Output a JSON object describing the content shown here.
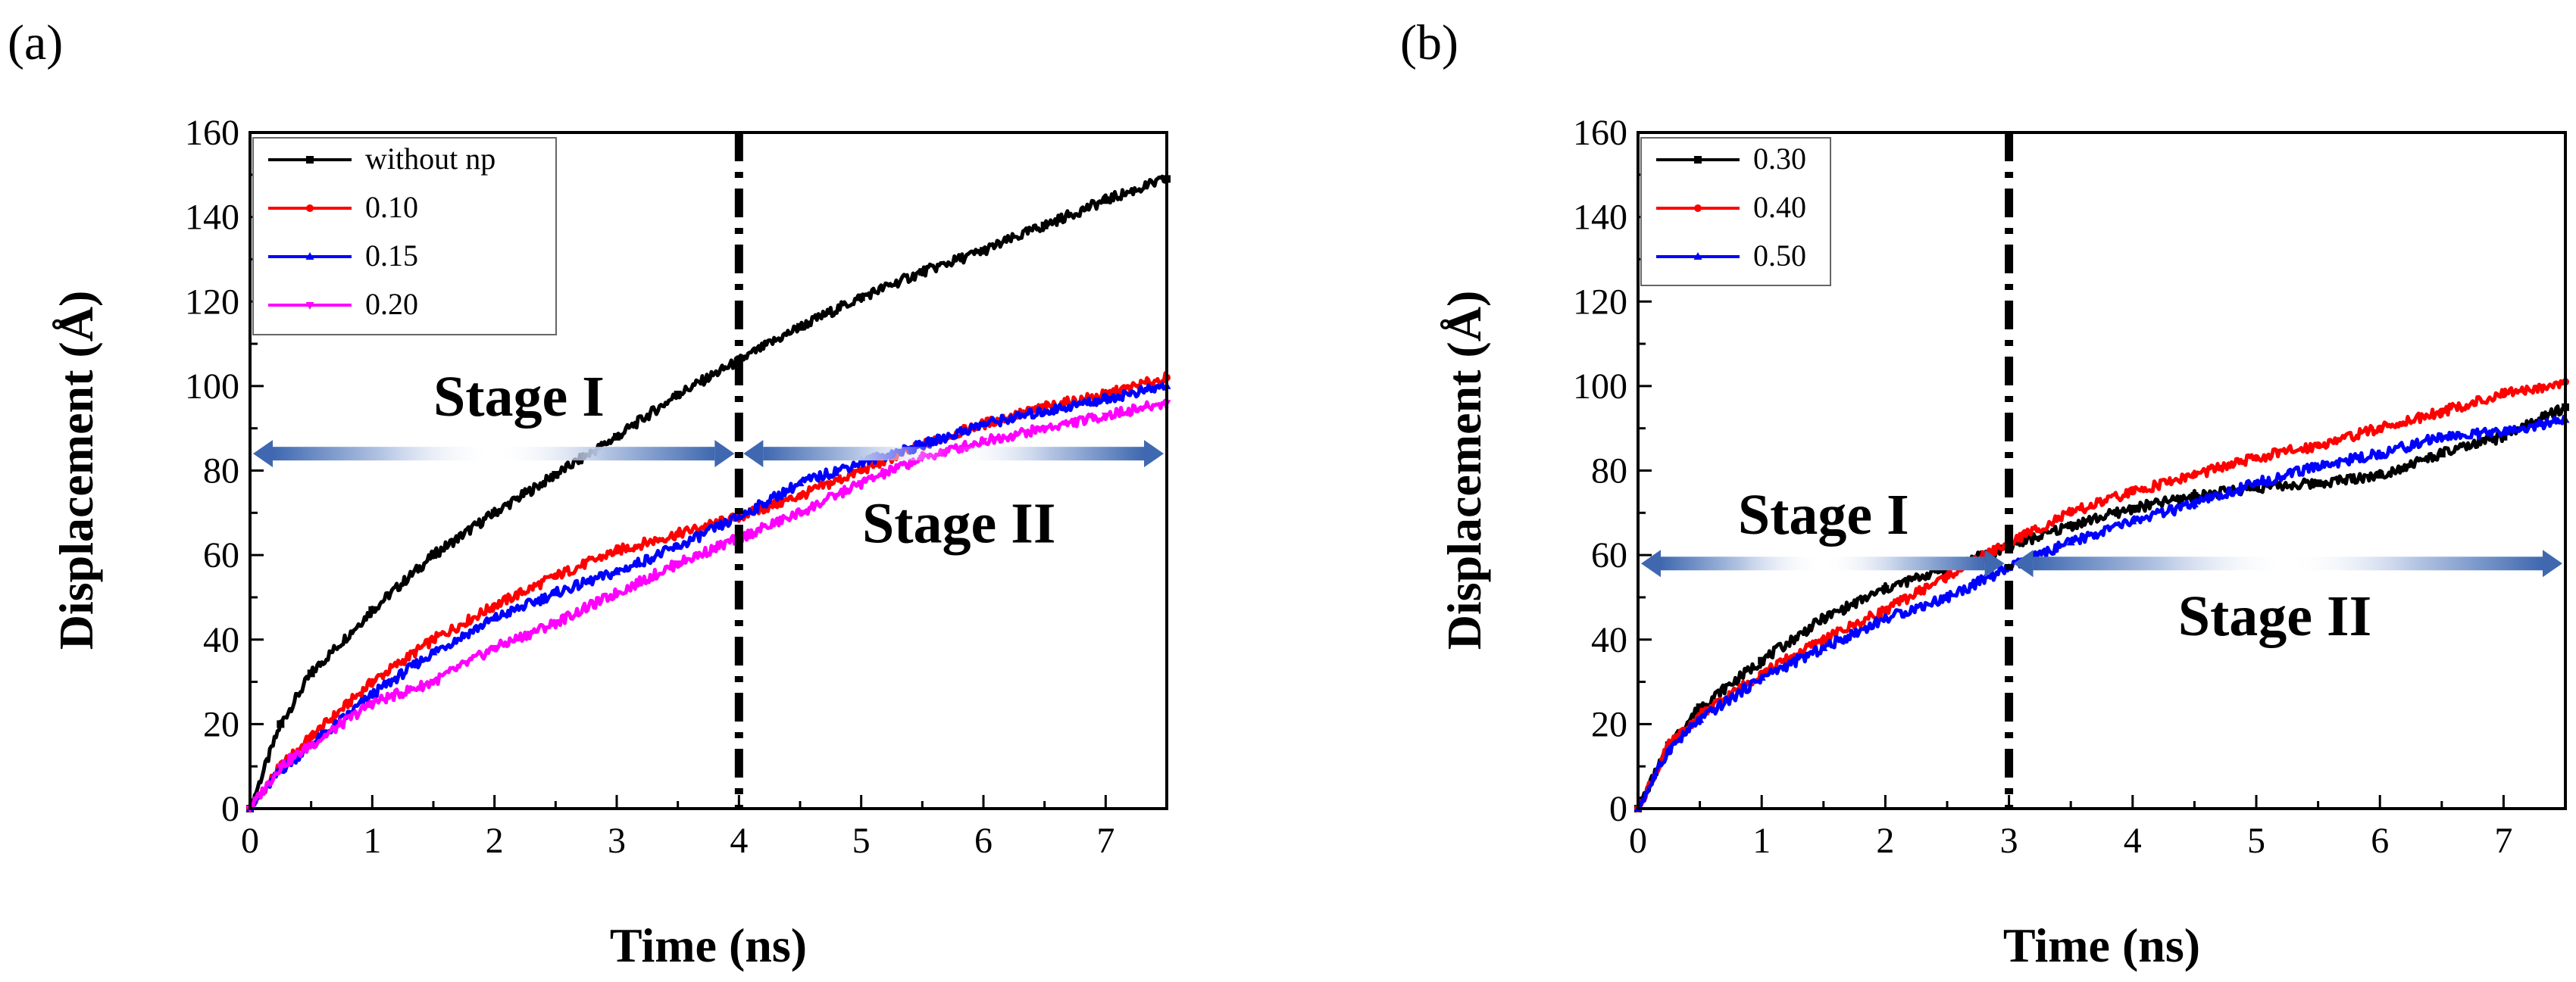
{
  "chart_data": [
    {
      "type": "line",
      "panel_label": "(a)",
      "xlabel": "Time (ns)",
      "ylabel": "Displacement (Å)",
      "xlim": [
        0,
        7.5
      ],
      "ylim": [
        0,
        160
      ],
      "xticks": [
        0,
        1,
        2,
        3,
        4,
        5,
        6,
        7
      ],
      "yticks": [
        0,
        20,
        40,
        60,
        80,
        100,
        120,
        140,
        160
      ],
      "legend_position": "top-left",
      "vline_x": 4,
      "arrows": {
        "y": 84,
        "stage1_x": [
          0,
          4
        ],
        "stage2_x": [
          4,
          7.5
        ]
      },
      "annotations": [
        {
          "text": "Stage I",
          "x": 2.2,
          "y": 93
        },
        {
          "text": "Stage II",
          "x": 5.8,
          "y": 63
        }
      ],
      "series": [
        {
          "name": "without np",
          "color": "#000000",
          "marker": "square",
          "x": [
            0,
            0.25,
            0.5,
            1,
            1.5,
            2,
            2.5,
            3,
            3.5,
            4,
            4.5,
            5,
            5.5,
            6,
            6.5,
            7,
            7.5
          ],
          "y": [
            0,
            20,
            32,
            47,
            60,
            70,
            79,
            88,
            98,
            106,
            114,
            121,
            127,
            132,
            138,
            144,
            149
          ]
        },
        {
          "name": "0.10",
          "color": "#ff0000",
          "marker": "circle",
          "x": [
            0,
            0.25,
            0.5,
            1,
            1.5,
            2,
            2.5,
            3,
            3.5,
            4,
            4.5,
            5,
            5.5,
            6,
            6.5,
            7,
            7.5
          ],
          "y": [
            0,
            10,
            17,
            30,
            40,
            48,
            55,
            61,
            65,
            69,
            74,
            80,
            86,
            91,
            95,
            98,
            102
          ]
        },
        {
          "name": "0.15",
          "color": "#0000ff",
          "marker": "triangle-up",
          "x": [
            0,
            0.25,
            0.5,
            1,
            1.5,
            2,
            2.5,
            3,
            3.5,
            4,
            4.5,
            5,
            5.5,
            6,
            6.5,
            7,
            7.5
          ],
          "y": [
            0,
            9,
            15,
            27,
            37,
            45,
            51,
            56,
            62,
            69,
            77,
            82,
            86,
            91,
            94,
            97,
            100
          ]
        },
        {
          "name": "0.20",
          "color": "#ff00ff",
          "marker": "triangle-down",
          "x": [
            0,
            0.25,
            0.5,
            1,
            1.5,
            2,
            2.5,
            3,
            3.5,
            4,
            4.5,
            5,
            5.5,
            6,
            6.5,
            7,
            7.5
          ],
          "y": [
            0,
            10,
            15,
            25,
            30,
            38,
            44,
            51,
            58,
            64,
            70,
            77,
            83,
            87,
            90,
            93,
            96
          ]
        }
      ]
    },
    {
      "type": "line",
      "panel_label": "(b)",
      "xlabel": "Time (ns)",
      "ylabel": "Displacement (Å)",
      "xlim": [
        0,
        7.5
      ],
      "ylim": [
        0,
        160
      ],
      "xticks": [
        0,
        1,
        2,
        3,
        4,
        5,
        6,
        7
      ],
      "yticks": [
        0,
        20,
        40,
        60,
        80,
        100,
        120,
        140,
        160
      ],
      "legend_position": "top-left",
      "vline_x": 3,
      "arrows": {
        "y": 58,
        "stage1_x": [
          0,
          3
        ],
        "stage2_x": [
          3,
          7.5
        ]
      },
      "annotations": [
        {
          "text": "Stage I",
          "x": 1.5,
          "y": 65
        },
        {
          "text": "Stage II",
          "x": 5.15,
          "y": 41
        }
      ],
      "series": [
        {
          "name": "0.30",
          "color": "#000000",
          "marker": "square",
          "x": [
            0,
            0.25,
            0.5,
            1,
            1.5,
            2,
            2.5,
            3,
            3.5,
            4,
            4.5,
            5,
            5.5,
            6,
            6.5,
            7,
            7.5
          ],
          "y": [
            0,
            15,
            24,
            35,
            45,
            52,
            57,
            62,
            67,
            71,
            74,
            76,
            77,
            79,
            84,
            88,
            95
          ]
        },
        {
          "name": "0.40",
          "color": "#ff0000",
          "marker": "circle",
          "x": [
            0,
            0.25,
            0.5,
            1,
            1.5,
            2,
            2.5,
            3,
            3.5,
            4,
            4.5,
            5,
            5.5,
            6,
            6.5,
            7,
            7.5
          ],
          "y": [
            0,
            15,
            22,
            32,
            40,
            47,
            55,
            63,
            70,
            75,
            79,
            83,
            86,
            90,
            94,
            98,
            101
          ]
        },
        {
          "name": "0.50",
          "color": "#0000ff",
          "marker": "triangle-up",
          "x": [
            0,
            0.25,
            0.5,
            1,
            1.5,
            2,
            2.5,
            3,
            3.5,
            4,
            4.5,
            5,
            5.5,
            6,
            6.5,
            7,
            7.5
          ],
          "y": [
            0,
            14,
            21,
            31,
            38,
            45,
            50,
            57,
            63,
            68,
            72,
            77,
            81,
            84,
            88,
            89,
            92
          ]
        }
      ]
    }
  ]
}
